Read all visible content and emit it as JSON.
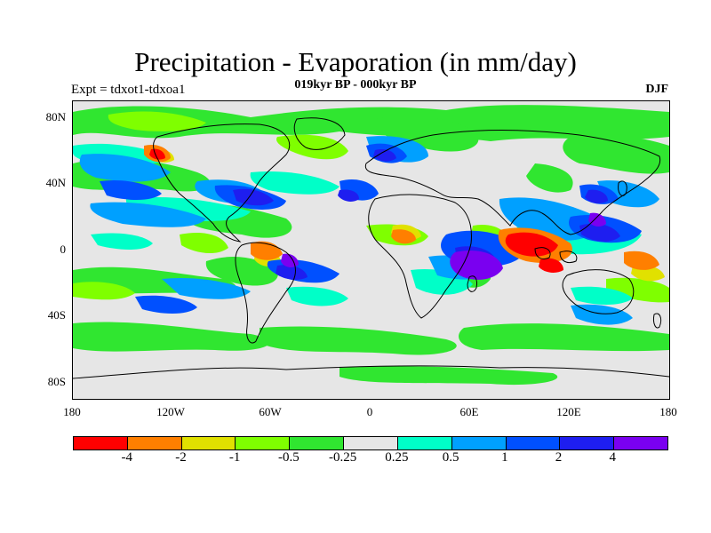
{
  "title": "Precipitation - Evaporation (in mm/day)",
  "subtitle": "019kyr BP - 000kyr BP",
  "left_label": "Expt = tdxot1-tdxoa1",
  "right_label": "DJF",
  "lat_labels": [
    "80N",
    "40N",
    "0",
    "40S",
    "80S"
  ],
  "lon_labels": [
    "180",
    "120W",
    "60W",
    "0",
    "60E",
    "120E",
    "180"
  ],
  "colorbar": {
    "colors": [
      "#ff0000",
      "#ff7f00",
      "#e1e100",
      "#7fff00",
      "#30e630",
      "#e6e6e6",
      "#00ffc8",
      "#00a0ff",
      "#0050ff",
      "#1e1ef0",
      "#7a00f0"
    ],
    "labels": [
      "-4",
      "-2",
      "-1",
      "-0.5",
      "-0.25",
      "0.25",
      "0.5",
      "1",
      "2",
      "4"
    ]
  }
}
